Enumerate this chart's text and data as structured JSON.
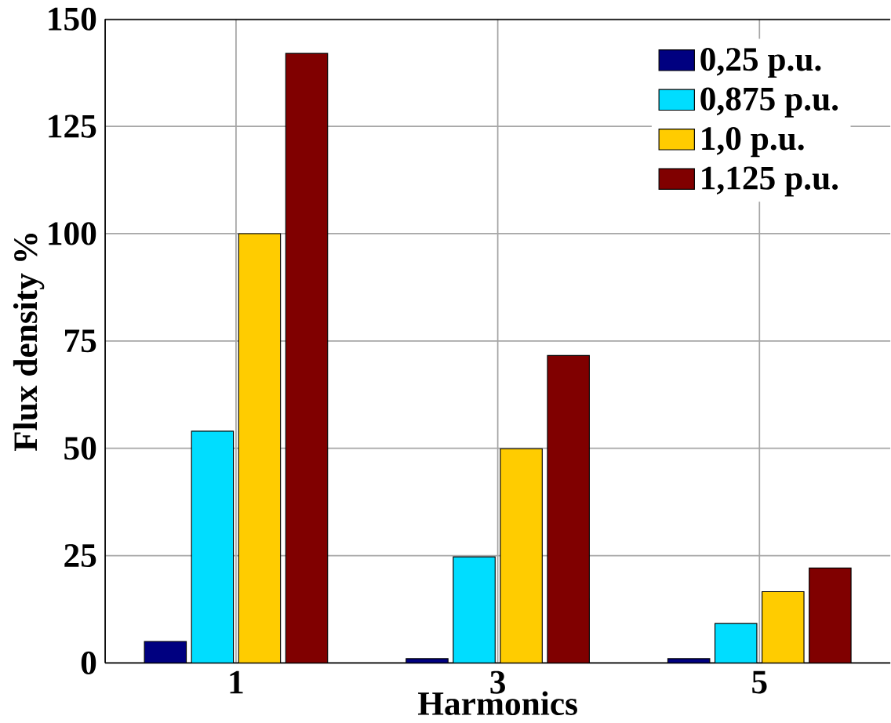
{
  "chart_data": {
    "type": "bar",
    "xlabel": "Harmonics",
    "ylabel": "Flux density %",
    "categories": [
      "1",
      "3",
      "5"
    ],
    "series": [
      {
        "name": "0,25 p.u.",
        "color": "#000080",
        "values": [
          5,
          1,
          1
        ]
      },
      {
        "name": "0,875 p.u.",
        "color": "#00ddff",
        "values": [
          54,
          24.7,
          9.2
        ]
      },
      {
        "name": "1,0 p.u.",
        "color": "#ffcc00",
        "values": [
          100,
          49.9,
          16.6
        ]
      },
      {
        "name": "1,125 p.u.",
        "color": "#800000",
        "values": [
          142,
          71.6,
          22.1
        ]
      }
    ],
    "ylim": [
      0,
      150
    ],
    "yticks": [
      0,
      25,
      50,
      75,
      100,
      125,
      150
    ],
    "grid": true,
    "legend": "top right"
  }
}
